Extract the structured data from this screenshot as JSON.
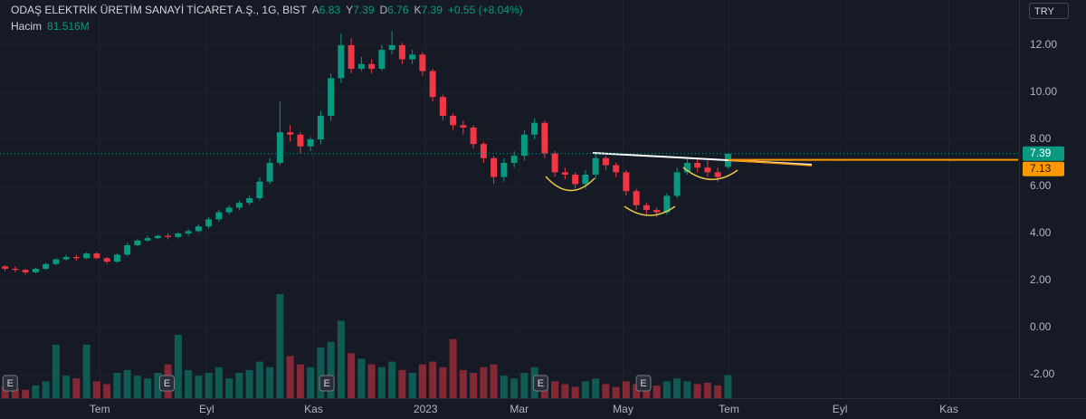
{
  "chart_data": {
    "type": "candlestick",
    "title": "ODAŞ ELEKTRİK ÜRETİM SANAYİ TİCARET A.Ş., 1G, BIST",
    "ohlc_prefixes": [
      "A",
      "Y",
      "D",
      "K"
    ],
    "change_label": "+0.55 (+8.04%)",
    "currency": "TRY",
    "colors": {
      "up": "#089981",
      "down": "#f23645"
    },
    "open": [
      2.6,
      2.5,
      2.45,
      2.35,
      2.5,
      2.7,
      2.9,
      3.0,
      2.95,
      3.15,
      2.95,
      2.8,
      3.1,
      3.5,
      3.7,
      3.8,
      3.9,
      3.85,
      4.0,
      4.1,
      4.3,
      4.6,
      4.9,
      5.1,
      5.3,
      5.5,
      6.2,
      7.0,
      8.3,
      8.2,
      7.7,
      8.0,
      9.0,
      10.6,
      12.0,
      11.0,
      11.2,
      11.0,
      11.8,
      12.0,
      11.4,
      11.6,
      10.9,
      9.8,
      9.0,
      8.6,
      8.5,
      7.8,
      7.2,
      6.4,
      7.0,
      7.3,
      8.2,
      8.7,
      7.4,
      6.6,
      6.5,
      6.1,
      6.5,
      7.2,
      6.9,
      6.6,
      5.8,
      5.2,
      5.0,
      4.9,
      5.6,
      6.6,
      7.0,
      6.8,
      6.6,
      6.83
    ],
    "high": [
      2.65,
      2.6,
      2.5,
      2.55,
      2.75,
      2.95,
      3.1,
      3.1,
      3.2,
      3.2,
      3.0,
      3.15,
      3.6,
      3.75,
      3.9,
      3.95,
      4.0,
      4.05,
      4.2,
      4.4,
      4.7,
      5.0,
      5.2,
      5.4,
      5.6,
      6.4,
      7.2,
      9.6,
      8.6,
      8.3,
      8.1,
      9.2,
      10.8,
      12.5,
      12.3,
      11.5,
      11.4,
      12.0,
      12.6,
      12.1,
      11.8,
      11.7,
      11.0,
      9.9,
      9.1,
      8.8,
      8.6,
      7.9,
      7.3,
      7.2,
      7.5,
      8.4,
      8.9,
      8.8,
      7.5,
      6.8,
      6.6,
      6.7,
      7.4,
      7.3,
      7.0,
      6.7,
      5.9,
      5.3,
      5.1,
      5.7,
      6.8,
      7.2,
      7.2,
      7.1,
      6.8,
      7.39
    ],
    "low": [
      2.4,
      2.35,
      2.25,
      2.3,
      2.45,
      2.65,
      2.85,
      2.85,
      2.9,
      2.9,
      2.7,
      2.75,
      3.05,
      3.45,
      3.65,
      3.75,
      3.75,
      3.8,
      3.9,
      4.05,
      4.2,
      4.5,
      4.8,
      5.0,
      5.2,
      5.4,
      6.1,
      6.9,
      7.9,
      7.4,
      7.5,
      7.8,
      8.8,
      10.4,
      10.8,
      10.9,
      10.8,
      10.9,
      11.6,
      11.2,
      11.2,
      10.7,
      9.6,
      8.8,
      8.4,
      8.2,
      7.6,
      7.0,
      6.1,
      6.2,
      6.8,
      7.1,
      8.0,
      7.2,
      6.4,
      6.3,
      5.9,
      5.9,
      6.3,
      6.7,
      6.4,
      5.6,
      5.0,
      4.8,
      4.7,
      4.8,
      5.5,
      6.5,
      6.6,
      6.4,
      6.2,
      6.76
    ],
    "close": [
      2.5,
      2.45,
      2.35,
      2.5,
      2.7,
      2.9,
      3.0,
      2.95,
      3.15,
      2.95,
      2.8,
      3.1,
      3.5,
      3.7,
      3.8,
      3.9,
      3.85,
      4.0,
      4.1,
      4.3,
      4.6,
      4.9,
      5.1,
      5.3,
      5.5,
      6.2,
      7.0,
      8.3,
      8.2,
      7.7,
      8.0,
      9.0,
      10.6,
      12.0,
      11.0,
      11.2,
      11.0,
      11.8,
      12.0,
      11.4,
      11.6,
      10.9,
      9.8,
      9.0,
      8.6,
      8.5,
      7.8,
      7.2,
      6.4,
      7.0,
      7.3,
      8.2,
      8.7,
      7.4,
      6.6,
      6.5,
      6.1,
      6.5,
      7.2,
      6.9,
      6.6,
      5.8,
      5.2,
      5.0,
      4.9,
      5.6,
      6.6,
      7.0,
      6.8,
      6.6,
      6.4,
      7.39
    ],
    "xlim": [
      0,
      100
    ],
    "xticks": [
      {
        "value": 9.8,
        "label": "Tem"
      },
      {
        "value": 20.3,
        "label": "Eyl"
      },
      {
        "value": 30.8,
        "label": "Kas"
      },
      {
        "value": 41.8,
        "label": "2023"
      },
      {
        "value": 51,
        "label": "Mar"
      },
      {
        "value": 61.2,
        "label": "May"
      },
      {
        "value": 71.6,
        "label": "Tem"
      },
      {
        "value": 82.5,
        "label": "Eyl"
      },
      {
        "value": 93.2,
        "label": "Kas"
      }
    ],
    "ylim": [
      -3,
      13.92
    ],
    "yticks": [
      {
        "value": 12,
        "label": "12.00"
      },
      {
        "value": 10,
        "label": "10.00"
      },
      {
        "value": 8,
        "label": "8.00"
      },
      {
        "value": 6,
        "label": "6.00"
      },
      {
        "value": 4,
        "label": "4.00"
      },
      {
        "value": 2,
        "label": "2.00"
      },
      {
        "value": 0,
        "label": "0.00"
      },
      {
        "value": -2,
        "label": "-2.00"
      }
    ],
    "grid": true,
    "hline": {
      "value": 7.13,
      "color": "#ff9800"
    },
    "volume": {
      "name": "Hacim",
      "last_label": "81.516M",
      "vlim": [
        0,
        450
      ],
      "values": [
        40,
        35,
        30,
        45,
        60,
        190,
        80,
        70,
        190,
        60,
        50,
        90,
        100,
        80,
        70,
        90,
        120,
        225,
        100,
        80,
        90,
        110,
        70,
        90,
        100,
        130,
        110,
        370,
        150,
        120,
        110,
        180,
        200,
        275,
        160,
        140,
        120,
        110,
        130,
        100,
        90,
        120,
        130,
        110,
        210,
        100,
        90,
        110,
        120,
        80,
        70,
        90,
        110,
        70,
        60,
        50,
        40,
        60,
        70,
        50,
        40,
        60,
        50,
        40,
        45,
        60,
        70,
        60,
        50,
        55,
        45,
        81.516
      ]
    },
    "earnings": {
      "label": "E",
      "x": [
        1,
        16.4,
        32.1,
        53.1,
        63.2
      ]
    }
  }
}
